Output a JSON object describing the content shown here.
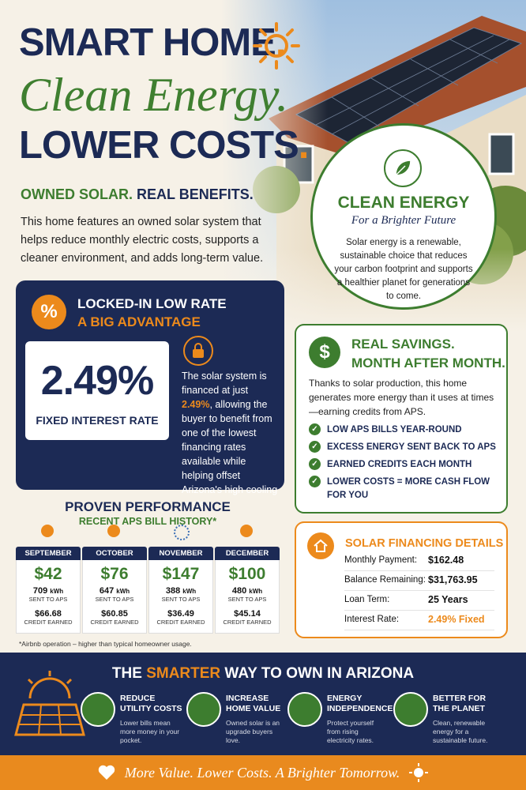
{
  "header": {
    "line_1": {
      "text": "SMART HOME",
      "dot": "."
    },
    "line_2": "Clean Energy.",
    "line_3": {
      "text": "LOWER COSTS",
      "dot": "."
    },
    "subtitle_1": "OWNED SOLAR.",
    "subtitle_2": "REAL BENEFITS.",
    "intro": "This home features an owned solar system that helps reduce monthly electric costs, supports a cleaner environment, and adds long-term value."
  },
  "clean_energy": {
    "title": "CLEAN ENERGY",
    "subtitle": "For a Brighter Future",
    "text": "Solar energy is a renewable, sustainable choice that reduces your carbon footprint and supports a healthier planet for generations to come."
  },
  "locked_rate": {
    "title": "LOCKED-IN LOW RATE",
    "subtitle": "A BIG ADVANTAGE",
    "rate": "2.49%",
    "rate_label": "FIXED INTEREST RATE",
    "text_1": "The solar system is financed at just",
    "text_highlight": "2.49%",
    "text_2": ", allowing the buyer to benefit from one of the lowest financing rates available while helping offset Arizona's high cooling costs."
  },
  "savings": {
    "title_1": "REAL SAVINGS.",
    "title_2": "MONTH AFTER MONTH.",
    "text": "Thanks to solar production, this home generates more energy than it uses at times—earning credits from APS.",
    "items": [
      "LOW APS BILLS YEAR-ROUND",
      "EXCESS ENERGY SENT BACK TO APS",
      "EARNED CREDITS EACH MONTH",
      "LOWER COSTS = MORE CASH FLOW FOR YOU"
    ]
  },
  "performance": {
    "title": "PROVEN PERFORMANCE",
    "subtitle": "RECENT APS BILL HISTORY*",
    "months": [
      {
        "month": "SEPTEMBER",
        "bill": "$42",
        "kwh": "709",
        "unit": "kWh",
        "sent": "SENT TO APS",
        "credit": "$66.68",
        "credit_label": "CREDIT EARNED"
      },
      {
        "month": "OCTOBER",
        "bill": "$76",
        "kwh": "647",
        "unit": "kWh",
        "sent": "SENT TO APS",
        "credit": "$60.85",
        "credit_label": "CREDIT EARNED"
      },
      {
        "month": "NOVEMBER",
        "bill": "$147",
        "kwh": "388",
        "unit": "kWh",
        "sent": "SENT TO APS",
        "credit": "$36.49",
        "credit_label": "CREDIT EARNED"
      },
      {
        "month": "DECEMBER",
        "bill": "$100",
        "kwh": "480",
        "unit": "kWh",
        "sent": "SENT TO APS",
        "credit": "$45.14",
        "credit_label": "CREDIT EARNED"
      }
    ],
    "footnote": "*Airbnb operation – higher than typical homeowner usage."
  },
  "financing": {
    "title": "SOLAR FINANCING DETAILS",
    "rows": [
      {
        "label": "Monthly Payment:",
        "value": "$162.48"
      },
      {
        "label": "Balance Remaining:",
        "value": "$31,763.95"
      },
      {
        "label": "Loan Term:",
        "value": "25 Years"
      },
      {
        "label": "Interest Rate:",
        "value": "2.49% Fixed"
      }
    ]
  },
  "smarter": {
    "title_1": "THE ",
    "title_highlight": "SMARTER",
    "title_2": " WAY TO OWN IN ARIZONA",
    "features": [
      {
        "title_lines": [
          "REDUCE",
          "UTILITY COSTS"
        ],
        "text": "Lower bills mean more money in your pocket."
      },
      {
        "title_lines": [
          "INCREASE",
          "HOME VALUE"
        ],
        "text": "Owned solar is an upgrade buyers love."
      },
      {
        "title_lines": [
          "ENERGY",
          "INDEPENDENCE"
        ],
        "text": "Protect yourself from rising electricity rates."
      },
      {
        "title_lines": [
          "BETTER FOR",
          "THE PLANET"
        ],
        "text": "Clean, renewable energy for a sustainable future."
      }
    ]
  },
  "footer": {
    "tagline": "More Value. Lower Costs. A Brighter Tomorrow."
  }
}
